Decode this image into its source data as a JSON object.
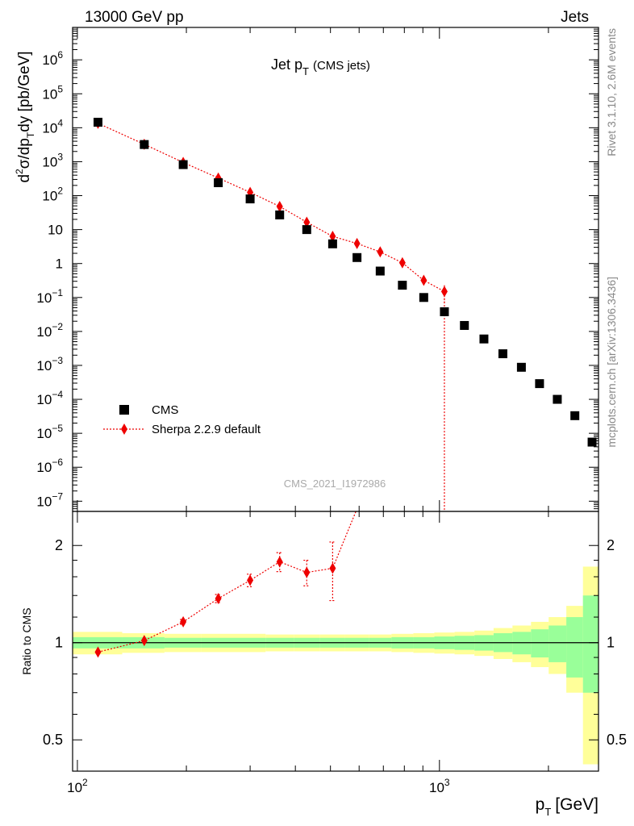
{
  "header": {
    "left": "13000 GeV pp",
    "right": "Jets",
    "side_rivet": "Rivet 3.1.10,  2.6M events",
    "side_mcplots": "mcplots.cern.ch [arXiv:1306.3436]",
    "watermark": "CMS_2021_I1972986"
  },
  "colors": {
    "data": "#000000",
    "mc": "#ee0000",
    "band_inner": "#99ff99",
    "band_outer": "#ffff99",
    "side_text": "#888888"
  },
  "chart_data": [
    {
      "type": "scatter",
      "panel": "main",
      "title": "Jet p_T (CMS jets)",
      "title_main": "Jet p",
      "title_sub": "T",
      "title_paren": "(CMS jets)",
      "ylabel": "d²σ/dp_T dy [pb/GeV]",
      "xscale": "log",
      "yscale": "log",
      "xlim": [
        97,
        2750
      ],
      "ylim": [
        5e-08,
        9000000.0
      ],
      "y_ticks": [
        {
          "v": 1000000.0,
          "base": "10",
          "exp": "6"
        },
        {
          "v": 100000.0,
          "base": "10",
          "exp": "5"
        },
        {
          "v": 10000.0,
          "base": "10",
          "exp": "4"
        },
        {
          "v": 1000.0,
          "base": "10",
          "exp": "3"
        },
        {
          "v": 100.0,
          "base": "10",
          "exp": "2"
        },
        {
          "v": 10,
          "base": "10",
          "exp": ""
        },
        {
          "v": 1,
          "base": "1",
          "exp": ""
        },
        {
          "v": 0.1,
          "base": "10",
          "exp": "−1"
        },
        {
          "v": 0.01,
          "base": "10",
          "exp": "−2"
        },
        {
          "v": 0.001,
          "base": "10",
          "exp": "−3"
        },
        {
          "v": 0.0001,
          "base": "10",
          "exp": "−4"
        },
        {
          "v": 1e-05,
          "base": "10",
          "exp": "−5"
        },
        {
          "v": 1e-06,
          "base": "10",
          "exp": "−6"
        },
        {
          "v": 1e-07,
          "base": "10",
          "exp": "−7"
        }
      ],
      "legend_position": "lower-left",
      "series": [
        {
          "name": "CMS",
          "marker": "square",
          "x": [
            114,
            153,
            196,
            245,
            300,
            362,
            430,
            507,
            592,
            686,
            790,
            905,
            1032,
            1172,
            1327,
            1497,
            1684,
            1890,
            2116,
            2366,
            2640
          ],
          "y": [
            14500,
            3200,
            820,
            240,
            80,
            27,
            10,
            3.8,
            1.5,
            0.6,
            0.23,
            0.1,
            0.038,
            0.015,
            0.006,
            0.0022,
            0.00088,
            0.00029,
            0.0001,
            3.3e-05,
            5.5e-06
          ]
        },
        {
          "name": "Sherpa 2.2.9 default",
          "marker": "diamond",
          "line": "dotted",
          "x": [
            114,
            153,
            196,
            245,
            300,
            362,
            430,
            507,
            592,
            686,
            790,
            905,
            1032
          ],
          "y": [
            13500,
            3250,
            950,
            330,
            125,
            48,
            16.5,
            6.3,
            3.9,
            2.2,
            1.05,
            0.32,
            0.15
          ],
          "y_err": [
            0,
            0,
            0,
            0,
            0,
            0,
            0,
            0,
            0,
            0,
            0.25,
            0.1,
            0.08
          ],
          "tail_down_to_x": 1032
        }
      ]
    },
    {
      "type": "scatter",
      "panel": "ratio",
      "ylabel": "Ratio to CMS",
      "xlabel": "p_T [GeV]",
      "xlabel_main": "p",
      "xlabel_sub": "T",
      "xlabel_unit": "[GeV]",
      "xscale": "log",
      "yscale": "log",
      "xlim": [
        97,
        2750
      ],
      "ylim": [
        0.4,
        2.55
      ],
      "y_ticks": [
        {
          "v": 0.5,
          "label": "0.5"
        },
        {
          "v": 1,
          "label": "1"
        },
        {
          "v": 2,
          "label": "2"
        }
      ],
      "x_ticks": [
        {
          "v": 100,
          "base": "10",
          "exp": "2"
        },
        {
          "v": 1000,
          "base": "10",
          "exp": "3"
        }
      ],
      "band_edges": [
        97,
        133,
        174,
        220,
        272,
        331,
        396,
        468,
        549,
        638,
        737,
        847,
        968,
        1101,
        1249,
        1411,
        1591,
        1790,
        2003,
        2241,
        2491,
        2750
      ],
      "band_inner": [
        [
          0.96,
          1.04
        ],
        [
          0.96,
          1.04
        ],
        [
          0.965,
          1.035
        ],
        [
          0.965,
          1.035
        ],
        [
          0.965,
          1.035
        ],
        [
          0.965,
          1.035
        ],
        [
          0.965,
          1.035
        ],
        [
          0.965,
          1.035
        ],
        [
          0.965,
          1.035
        ],
        [
          0.965,
          1.035
        ],
        [
          0.96,
          1.04
        ],
        [
          0.96,
          1.04
        ],
        [
          0.955,
          1.045
        ],
        [
          0.95,
          1.05
        ],
        [
          0.945,
          1.055
        ],
        [
          0.935,
          1.07
        ],
        [
          0.92,
          1.08
        ],
        [
          0.9,
          1.1
        ],
        [
          0.87,
          1.13
        ],
        [
          0.78,
          1.2
        ],
        [
          0.7,
          1.4
        ]
      ],
      "band_outer": [
        [
          0.92,
          1.08
        ],
        [
          0.93,
          1.07
        ],
        [
          0.935,
          1.065
        ],
        [
          0.935,
          1.065
        ],
        [
          0.935,
          1.065
        ],
        [
          0.94,
          1.06
        ],
        [
          0.94,
          1.06
        ],
        [
          0.94,
          1.06
        ],
        [
          0.94,
          1.06
        ],
        [
          0.94,
          1.06
        ],
        [
          0.935,
          1.065
        ],
        [
          0.93,
          1.07
        ],
        [
          0.925,
          1.075
        ],
        [
          0.92,
          1.08
        ],
        [
          0.91,
          1.09
        ],
        [
          0.89,
          1.11
        ],
        [
          0.87,
          1.13
        ],
        [
          0.84,
          1.16
        ],
        [
          0.8,
          1.2
        ],
        [
          0.7,
          1.3
        ],
        [
          0.42,
          1.72
        ]
      ],
      "series": [
        {
          "name": "Sherpa 2.2.9 default",
          "marker": "diamond",
          "line": "dotted",
          "x": [
            114,
            153,
            196,
            245,
            300,
            362,
            430,
            507
          ],
          "y": [
            0.935,
            1.015,
            1.16,
            1.37,
            1.56,
            1.78,
            1.65,
            1.7
          ],
          "y_err": [
            0.01,
            0.012,
            0.02,
            0.04,
            0.07,
            0.12,
            0.15,
            0.35
          ],
          "continues_to": [
            592,
            2.6
          ]
        }
      ]
    }
  ]
}
